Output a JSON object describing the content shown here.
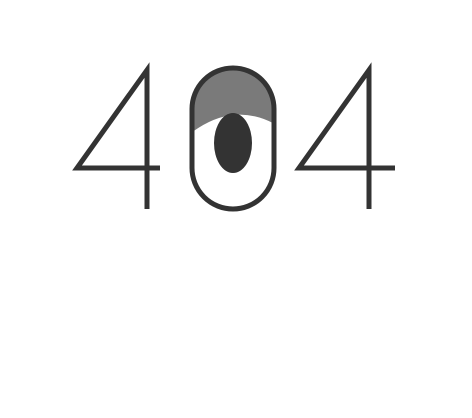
{
  "error_code": "404",
  "colors": {
    "stroke": "#333333",
    "eyelid": "#7a7a7a",
    "pupil": "#333333",
    "background": "#ffffff"
  },
  "icons": {
    "zero_glyph": "eye-icon"
  }
}
